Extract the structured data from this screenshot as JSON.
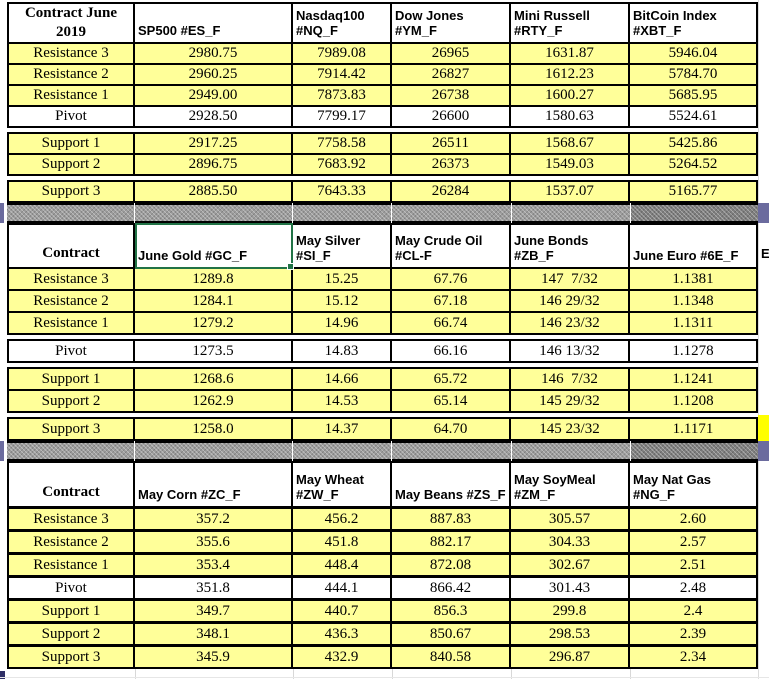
{
  "colors": {
    "row_fill": "#FFFF99",
    "pivot_row_fill": "#FFFFFF",
    "selection_green": "#217346",
    "separator_gray": "#9C9C9C",
    "separator_gray_dark": "#7E7E7E",
    "edge_purple": "#6B6B9E",
    "edge_bright_yellow": "#FFFF00",
    "corner_navy": "#2E2E66"
  },
  "clipped_next_header": "E",
  "tables": [
    {
      "corner_label": "Contract June 2019",
      "columns": [
        "SP500 #ES_F",
        "Nasdaq100 #NQ_F",
        "Dow Jones #YM_F",
        "Mini Russell #RTY_F",
        "BitCoin Index #XBT_F"
      ],
      "rows": [
        {
          "label": "Resistance 3",
          "values": [
            "2980.75",
            "7989.08",
            "26965",
            "1631.87",
            "5946.04"
          ]
        },
        {
          "label": "Resistance 2",
          "values": [
            "2960.25",
            "7914.42",
            "26827",
            "1612.23",
            "5784.70"
          ]
        },
        {
          "label": "Resistance 1",
          "values": [
            "2949.00",
            "7873.83",
            "26738",
            "1600.27",
            "5685.95"
          ]
        },
        {
          "label": "Pivot",
          "values": [
            "2928.50",
            "7799.17",
            "26600",
            "1580.63",
            "5524.61"
          ]
        },
        {
          "label": "Support 1",
          "values": [
            "2917.25",
            "7758.58",
            "26511",
            "1568.67",
            "5425.86"
          ]
        },
        {
          "label": "Support 2",
          "values": [
            "2896.75",
            "7683.92",
            "26373",
            "1549.03",
            "5264.52"
          ]
        },
        {
          "label": "Support 3",
          "values": [
            "2885.50",
            "7643.33",
            "26284",
            "1537.07",
            "5165.77"
          ]
        }
      ]
    },
    {
      "corner_label": "Contract",
      "selected_column": 0,
      "columns": [
        "June Gold #GC_F",
        "May Silver #SI_F",
        "May Crude Oil #CL-F",
        "June Bonds #ZB_F",
        "June Euro #6E_F"
      ],
      "rows": [
        {
          "label": "Resistance 3",
          "values": [
            "1289.8",
            "15.25",
            "67.76",
            "147  7/32",
            "1.1381"
          ]
        },
        {
          "label": "Resistance 2",
          "values": [
            "1284.1",
            "15.12",
            "67.18",
            "146 29/32",
            "1.1348"
          ]
        },
        {
          "label": "Resistance 1",
          "values": [
            "1279.2",
            "14.96",
            "66.74",
            "146 23/32",
            "1.1311"
          ]
        },
        {
          "label": "Pivot",
          "values": [
            "1273.5",
            "14.83",
            "66.16",
            "146 13/32",
            "1.1278"
          ]
        },
        {
          "label": "Support 1",
          "values": [
            "1268.6",
            "14.66",
            "65.72",
            "146  7/32",
            "1.1241"
          ]
        },
        {
          "label": "Support 2",
          "values": [
            "1262.9",
            "14.53",
            "65.14",
            "145 29/32",
            "1.1208"
          ]
        },
        {
          "label": "Support 3",
          "values": [
            "1258.0",
            "14.37",
            "64.70",
            "145 23/32",
            "1.1171"
          ]
        }
      ]
    },
    {
      "corner_label": "Contract",
      "columns": [
        "May  Corn #ZC_F",
        "May Wheat #ZW_F",
        "May Beans #ZS_F",
        "May SoyMeal #ZM_F",
        "May Nat Gas #NG_F"
      ],
      "rows": [
        {
          "label": "Resistance 3",
          "values": [
            "357.2",
            "456.2",
            "887.83",
            "305.57",
            "2.60"
          ]
        },
        {
          "label": "Resistance 2",
          "values": [
            "355.6",
            "451.8",
            "882.17",
            "304.33",
            "2.57"
          ]
        },
        {
          "label": "Resistance 1",
          "values": [
            "353.4",
            "448.4",
            "872.08",
            "302.67",
            "2.51"
          ]
        },
        {
          "label": "Pivot",
          "values": [
            "351.8",
            "444.1",
            "866.42",
            "301.43",
            "2.48"
          ]
        },
        {
          "label": "Support 1",
          "values": [
            "349.7",
            "440.7",
            "856.3",
            "299.8",
            "2.4"
          ]
        },
        {
          "label": "Support 2",
          "values": [
            "348.1",
            "436.3",
            "850.67",
            "298.53",
            "2.39"
          ]
        },
        {
          "label": "Support 3",
          "values": [
            "345.9",
            "432.9",
            "840.58",
            "296.87",
            "2.34"
          ]
        }
      ]
    }
  ]
}
